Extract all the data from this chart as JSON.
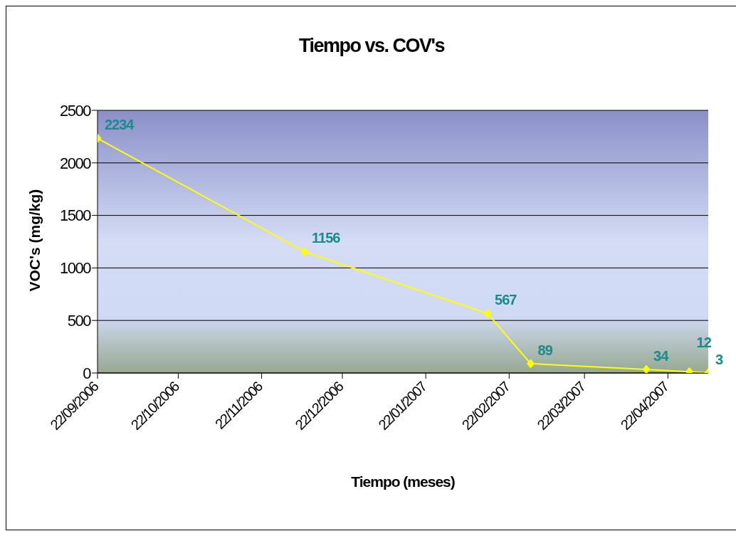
{
  "chart_data": {
    "type": "line",
    "title": "Tiempo vs. COV's",
    "xlabel": "Tiempo (meses)",
    "ylabel": "VOC's (mg/kg)",
    "x": [
      "2006-09-22",
      "2006-12-08",
      "2007-02-14",
      "2007-03-02",
      "2007-04-14",
      "2007-04-30",
      "2007-05-07"
    ],
    "series": [
      {
        "color": "#ffff00",
        "values": [
          2234,
          1156,
          567,
          89,
          34,
          12,
          3
        ]
      }
    ],
    "xlim": [
      "2006-09-22",
      "2007-05-07"
    ],
    "xticks": [
      {
        "value": "2006-09-22",
        "label": "22/09/2006"
      },
      {
        "value": "2006-10-22",
        "label": "22/10/2006"
      },
      {
        "value": "2006-11-22",
        "label": "22/11/2006"
      },
      {
        "value": "2006-12-22",
        "label": "22/12/2006"
      },
      {
        "value": "2007-01-22",
        "label": "22/01/2007"
      },
      {
        "value": "2007-02-22",
        "label": "22/02/2007"
      },
      {
        "value": "2007-03-22",
        "label": "22/03/2007"
      },
      {
        "value": "2007-04-22",
        "label": "22/04/2007"
      }
    ],
    "ylim": [
      0,
      2500
    ],
    "yticks": [
      0,
      500,
      1000,
      1500,
      2000,
      2500
    ],
    "grid": "y",
    "marker": "diamond",
    "line_style": "solid",
    "data_labels": true,
    "legend": false
  }
}
